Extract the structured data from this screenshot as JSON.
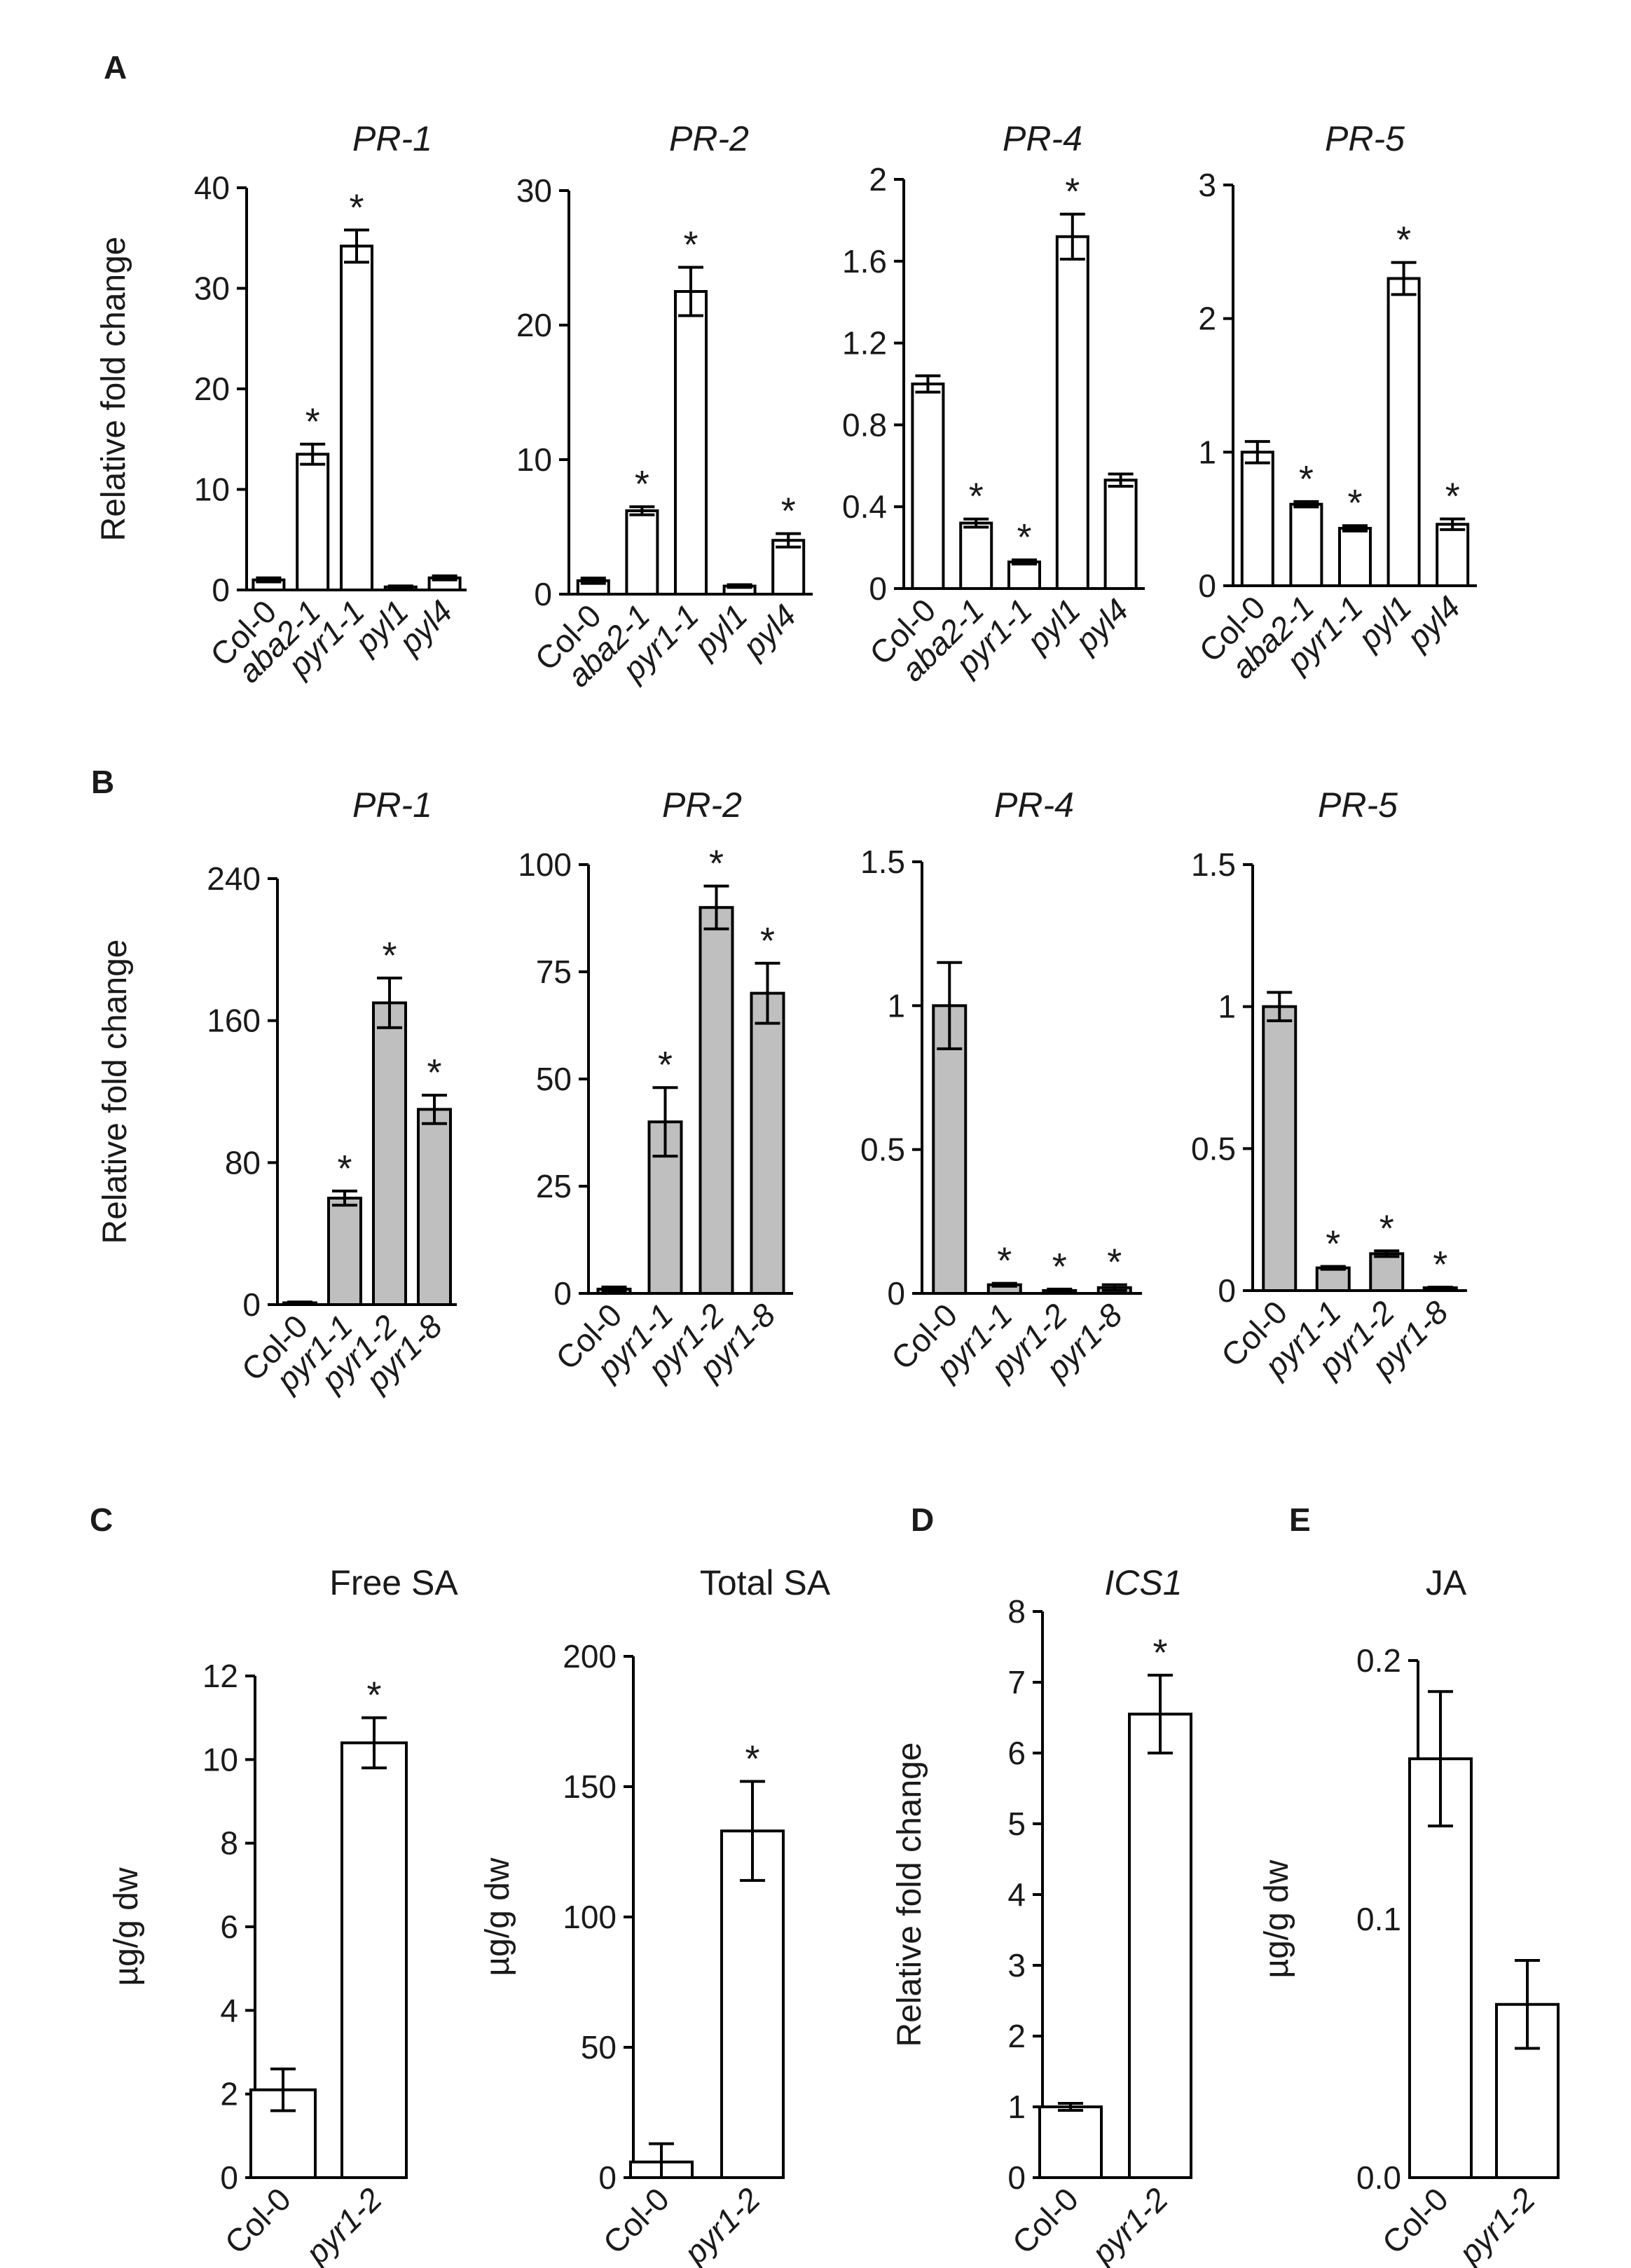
{
  "panels": {
    "A": {
      "label": "A"
    },
    "B": {
      "label": "B"
    },
    "C": {
      "label": "C"
    },
    "D": {
      "label": "D"
    },
    "E": {
      "label": "E"
    }
  },
  "chart_data": [
    {
      "id": "A-PR1",
      "panel": "A",
      "type": "bar",
      "title": "PR-1",
      "title_italic": true,
      "ylabel": "Relative fold change",
      "ylim": [
        0,
        40
      ],
      "yticks": [
        "0",
        "10",
        "20",
        "30",
        "40"
      ],
      "categories": [
        "Col-0",
        "aba2-1",
        "pyr1-1",
        "pyl1",
        "pyl4"
      ],
      "italic_categories": [
        1,
        2,
        3,
        4
      ],
      "values": [
        1.0,
        13.5,
        34.2,
        0.3,
        1.2
      ],
      "errors": [
        0.2,
        1.0,
        1.6,
        0.1,
        0.2
      ],
      "significance": [
        "",
        "*",
        "*",
        "",
        ""
      ],
      "bar_color": "#ffffff"
    },
    {
      "id": "A-PR2",
      "panel": "A",
      "type": "bar",
      "title": "PR-2",
      "title_italic": true,
      "ylabel": "",
      "ylim": [
        0,
        30
      ],
      "yticks": [
        "0",
        "10",
        "20",
        "30"
      ],
      "categories": [
        "Col-0",
        "aba2-1",
        "pyr1-1",
        "pyl1",
        "pyl4"
      ],
      "italic_categories": [
        1,
        2,
        3,
        4
      ],
      "values": [
        1.0,
        6.2,
        22.5,
        0.6,
        4.0
      ],
      "errors": [
        0.2,
        0.3,
        1.8,
        0.1,
        0.5
      ],
      "significance": [
        "",
        "*",
        "*",
        "",
        "*"
      ],
      "bar_color": "#ffffff"
    },
    {
      "id": "A-PR4",
      "panel": "A",
      "type": "bar",
      "title": "PR-4",
      "title_italic": true,
      "ylabel": "",
      "ylim": [
        0,
        2
      ],
      "yticks": [
        "0",
        "0.4",
        "0.8",
        "1.2",
        "1.6",
        "2"
      ],
      "categories": [
        "Col-0",
        "aba2-1",
        "pyr1-1",
        "pyl1",
        "pyl4"
      ],
      "italic_categories": [
        1,
        2,
        3,
        4
      ],
      "values": [
        1.0,
        0.32,
        0.13,
        1.72,
        0.53
      ],
      "errors": [
        0.04,
        0.02,
        0.01,
        0.11,
        0.03
      ],
      "significance": [
        "",
        "*",
        "*",
        "*",
        ""
      ],
      "bar_color": "#ffffff"
    },
    {
      "id": "A-PR5",
      "panel": "A",
      "type": "bar",
      "title": "PR-5",
      "title_italic": true,
      "ylabel": "",
      "ylim": [
        0,
        3
      ],
      "yticks": [
        "0",
        "1",
        "2",
        "3"
      ],
      "categories": [
        "Col-0",
        "aba2-1",
        "pyr1-1",
        "pyl1",
        "pyl4"
      ],
      "italic_categories": [
        1,
        2,
        3,
        4
      ],
      "values": [
        1.0,
        0.61,
        0.43,
        2.3,
        0.46
      ],
      "errors": [
        0.08,
        0.02,
        0.02,
        0.12,
        0.04
      ],
      "significance": [
        "",
        "*",
        "*",
        "*",
        "*"
      ],
      "bar_color": "#ffffff"
    },
    {
      "id": "B-PR1",
      "panel": "B",
      "type": "bar",
      "title": "PR-1",
      "title_italic": true,
      "ylabel": "Relative fold change",
      "ylim": [
        0,
        240
      ],
      "yticks": [
        "0",
        "80",
        "160",
        "240"
      ],
      "categories": [
        "Col-0",
        "pyr1-1",
        "pyr1-2",
        "pyr1-8"
      ],
      "italic_categories": [
        1,
        2,
        3
      ],
      "values": [
        1,
        60,
        170,
        110
      ],
      "errors": [
        0.5,
        4,
        14,
        8
      ],
      "significance": [
        "",
        "*",
        "*",
        "*"
      ],
      "bar_color": "#bfbfbf"
    },
    {
      "id": "B-PR2",
      "panel": "B",
      "type": "bar",
      "title": "PR-2",
      "title_italic": true,
      "ylabel": "",
      "ylim": [
        0,
        100
      ],
      "yticks": [
        "0",
        "25",
        "50",
        "75",
        "100"
      ],
      "categories": [
        "Col-0",
        "pyr1-1",
        "pyr1-2",
        "pyr1-8"
      ],
      "italic_categories": [
        1,
        2,
        3
      ],
      "values": [
        1,
        40,
        90,
        70
      ],
      "errors": [
        0.5,
        8,
        5,
        7
      ],
      "significance": [
        "",
        "*",
        "*",
        "*"
      ],
      "bar_color": "#bfbfbf"
    },
    {
      "id": "B-PR4",
      "panel": "B",
      "type": "bar",
      "title": "PR-4",
      "title_italic": true,
      "ylabel": "",
      "ylim": [
        0,
        1.5
      ],
      "yticks": [
        "0",
        "0.5",
        "1",
        "1.5"
      ],
      "categories": [
        "Col-0",
        "pyr1-1",
        "pyr1-2",
        "pyr1-8"
      ],
      "italic_categories": [
        1,
        2,
        3
      ],
      "values": [
        1.0,
        0.03,
        0.01,
        0.02
      ],
      "errors": [
        0.15,
        0.005,
        0.005,
        0.01
      ],
      "significance": [
        "",
        "*",
        "*",
        "*"
      ],
      "bar_color": "#bfbfbf"
    },
    {
      "id": "B-PR5",
      "panel": "B",
      "type": "bar",
      "title": "PR-5",
      "title_italic": true,
      "ylabel": "",
      "ylim": [
        0,
        1.5
      ],
      "yticks": [
        "0",
        "0.5",
        "1",
        "1.5"
      ],
      "categories": [
        "Col-0",
        "pyr1-1",
        "pyr1-2",
        "pyr1-8"
      ],
      "italic_categories": [
        1,
        2,
        3
      ],
      "values": [
        1.0,
        0.08,
        0.13,
        0.01
      ],
      "errors": [
        0.05,
        0.005,
        0.01,
        0.002
      ],
      "significance": [
        "",
        "*",
        "*",
        "*"
      ],
      "bar_color": "#bfbfbf"
    },
    {
      "id": "C-FreeSA",
      "panel": "C",
      "type": "bar",
      "title": "Free SA",
      "title_italic": false,
      "ylabel": "µg/g dw",
      "ylim": [
        0,
        12
      ],
      "yticks": [
        "0",
        "2",
        "4",
        "6",
        "8",
        "10",
        "12"
      ],
      "categories": [
        "Col-0",
        "pyr1-2"
      ],
      "italic_categories": [
        1
      ],
      "values": [
        2.1,
        10.4
      ],
      "errors": [
        0.5,
        0.6
      ],
      "significance": [
        "",
        "*"
      ],
      "bar_color": "#ffffff"
    },
    {
      "id": "C-TotalSA",
      "panel": "C",
      "type": "bar",
      "title": "Total SA",
      "title_italic": false,
      "ylabel": "µg/g dw",
      "ylim": [
        0,
        200
      ],
      "yticks": [
        "0",
        "50",
        "100",
        "150",
        "200"
      ],
      "categories": [
        "Col-0",
        "pyr1-2"
      ],
      "italic_categories": [
        1
      ],
      "values": [
        6,
        133
      ],
      "errors": [
        7,
        19
      ],
      "significance": [
        "",
        "*"
      ],
      "bar_color": "#ffffff"
    },
    {
      "id": "D-ICS1",
      "panel": "D",
      "type": "bar",
      "title": "ICS1",
      "title_italic": true,
      "ylabel": "Relative fold change",
      "ylim": [
        0,
        8
      ],
      "yticks": [
        "0",
        "1",
        "2",
        "3",
        "4",
        "5",
        "6",
        "7",
        "8"
      ],
      "categories": [
        "Col-0",
        "pyr1-2"
      ],
      "italic_categories": [
        1
      ],
      "values": [
        1.0,
        6.55
      ],
      "errors": [
        0.05,
        0.55
      ],
      "significance": [
        "",
        "*"
      ],
      "bar_color": "#ffffff"
    },
    {
      "id": "E-JA",
      "panel": "E",
      "type": "bar",
      "title": "JA",
      "title_italic": false,
      "ylabel": "µg/g dw",
      "ylim": [
        0,
        0.2
      ],
      "yticks": [
        "0.0",
        "0.1",
        "0.2"
      ],
      "categories": [
        "Col-0",
        "pyr1-2"
      ],
      "italic_categories": [
        1
      ],
      "values": [
        0.162,
        0.067
      ],
      "errors": [
        0.026,
        0.017
      ],
      "significance": [
        "",
        ""
      ],
      "bar_color": "#ffffff"
    }
  ]
}
